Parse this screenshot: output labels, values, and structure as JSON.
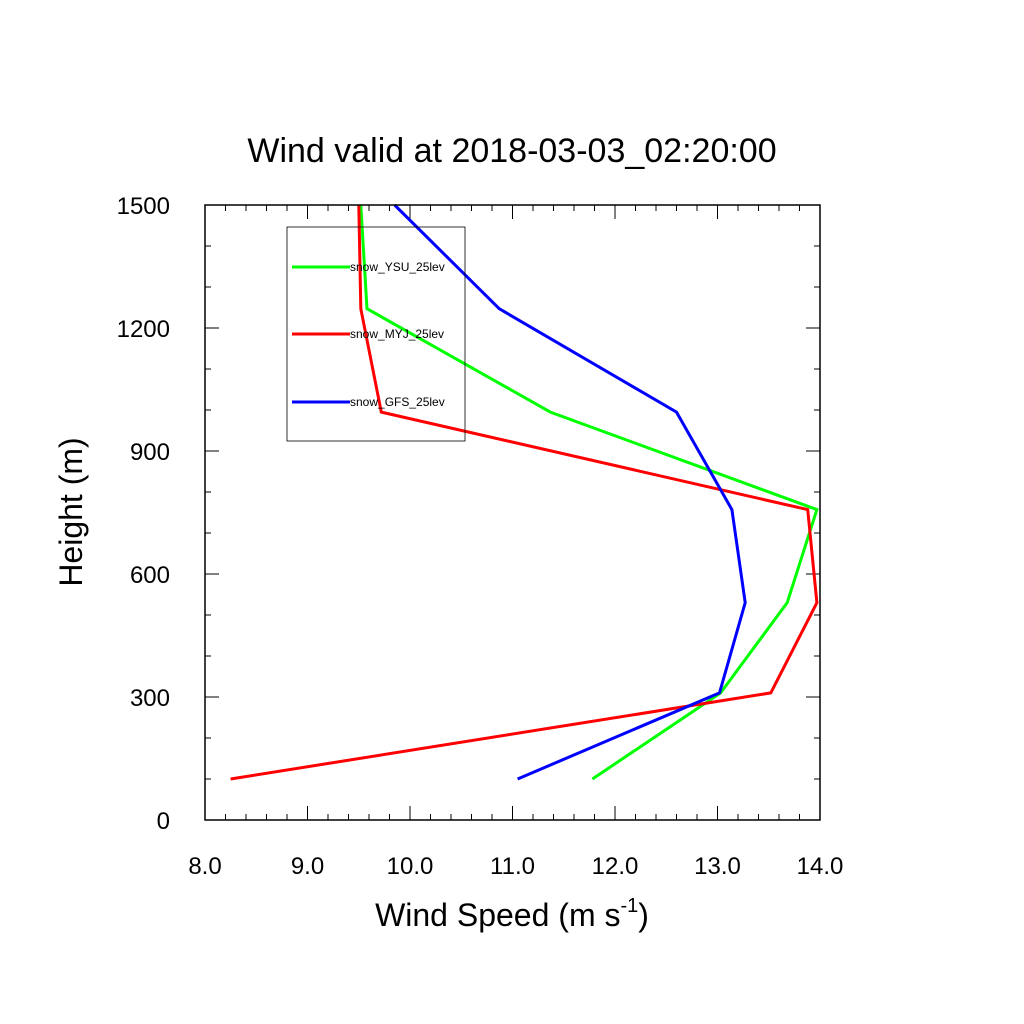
{
  "chart_data": {
    "type": "line",
    "title": "Wind valid at 2018-03-03_02:20:00",
    "xlabel_main": "Wind Speed (m s",
    "xlabel_sup": "-1",
    "xlabel_end": ")",
    "ylabel": "Height (m)",
    "xlim": [
      8.0,
      14.0
    ],
    "ylim": [
      0,
      1500
    ],
    "xticks": [
      "8.0",
      "9.0",
      "10.0",
      "11.0",
      "12.0",
      "13.0",
      "14.0"
    ],
    "yticks": [
      "0",
      "300",
      "600",
      "900",
      "1200",
      "1500"
    ],
    "legend_position": "top-left",
    "series": [
      {
        "name": "snow_YSU_25lev",
        "color": "#00ff00",
        "points": [
          [
            11.78,
            100
          ],
          [
            13.03,
            310
          ],
          [
            13.68,
            530
          ],
          [
            13.97,
            757
          ],
          [
            11.37,
            995
          ],
          [
            9.58,
            1247
          ],
          [
            9.52,
            1500
          ]
        ]
      },
      {
        "name": "snow_MYJ_25lev",
        "color": "#ff0000",
        "points": [
          [
            8.25,
            100
          ],
          [
            13.52,
            310
          ],
          [
            13.97,
            530
          ],
          [
            13.88,
            757
          ],
          [
            9.72,
            995
          ],
          [
            9.52,
            1247
          ],
          [
            9.5,
            1500
          ]
        ]
      },
      {
        "name": "snow_GFS_25lev",
        "color": "#0000ff",
        "points": [
          [
            11.05,
            100
          ],
          [
            13.02,
            310
          ],
          [
            13.27,
            530
          ],
          [
            13.14,
            757
          ],
          [
            12.6,
            995
          ],
          [
            10.87,
            1247
          ],
          [
            9.85,
            1500
          ]
        ]
      }
    ]
  }
}
